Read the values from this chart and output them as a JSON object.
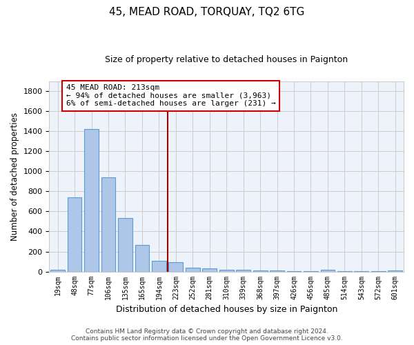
{
  "title": "45, MEAD ROAD, TORQUAY, TQ2 6TG",
  "subtitle": "Size of property relative to detached houses in Paignton",
  "xlabel": "Distribution of detached houses by size in Paignton",
  "ylabel": "Number of detached properties",
  "categories": [
    "19sqm",
    "48sqm",
    "77sqm",
    "106sqm",
    "135sqm",
    "165sqm",
    "194sqm",
    "223sqm",
    "252sqm",
    "281sqm",
    "310sqm",
    "339sqm",
    "368sqm",
    "397sqm",
    "426sqm",
    "456sqm",
    "485sqm",
    "514sqm",
    "543sqm",
    "572sqm",
    "601sqm"
  ],
  "values": [
    20,
    740,
    1420,
    940,
    535,
    265,
    105,
    90,
    40,
    30,
    20,
    15,
    10,
    12,
    5,
    4,
    15,
    3,
    2,
    2,
    10
  ],
  "bar_color": "#aec6e8",
  "bar_edge_color": "#5b9bd5",
  "grid_color": "#cccccc",
  "bg_color": "#eef2fa",
  "vline_x_idx": 6.5,
  "vline_color": "#990000",
  "annotation_line1": "45 MEAD ROAD: 213sqm",
  "annotation_line2": "← 94% of detached houses are smaller (3,963)",
  "annotation_line3": "6% of semi-detached houses are larger (231) →",
  "annotation_box_color": "#ffffff",
  "annotation_box_edge": "#cc0000",
  "footer_line1": "Contains HM Land Registry data © Crown copyright and database right 2024.",
  "footer_line2": "Contains public sector information licensed under the Open Government Licence v3.0.",
  "ylim": [
    0,
    1900
  ],
  "yticks": [
    0,
    200,
    400,
    600,
    800,
    1000,
    1200,
    1400,
    1600,
    1800
  ]
}
